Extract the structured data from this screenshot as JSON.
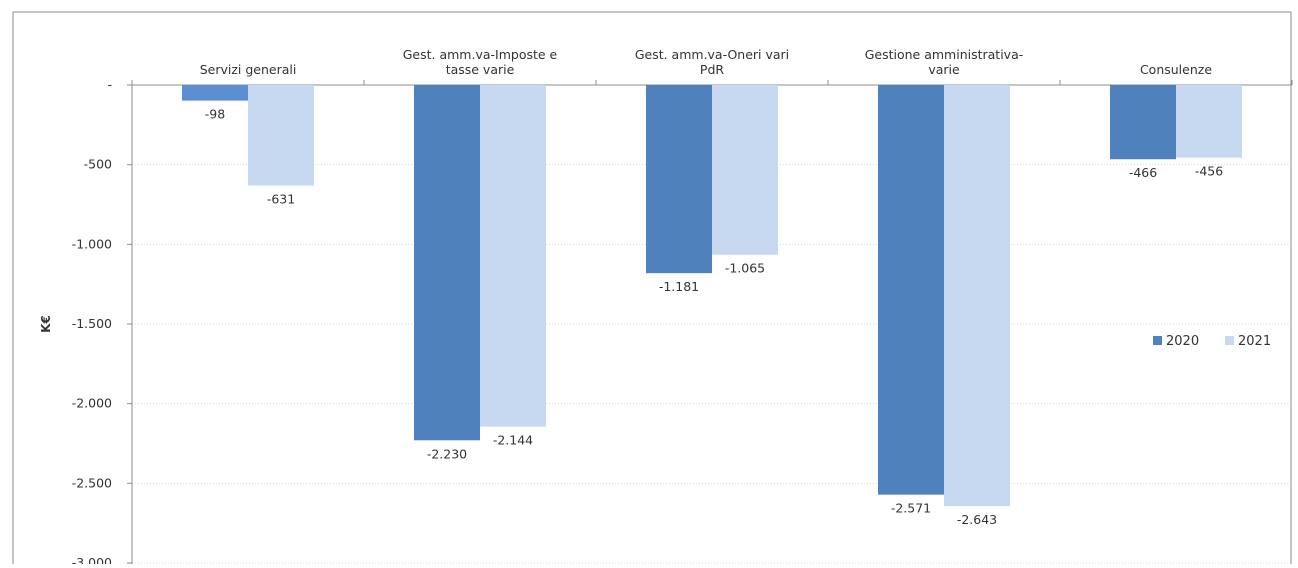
{
  "chart_data": {
    "type": "bar",
    "ylabel": "K€",
    "ylim": [
      -3000,
      0
    ],
    "yticks": [
      0,
      -500,
      -1000,
      -1500,
      -2000,
      -2500,
      -3000
    ],
    "ytick_labels": [
      "-",
      "-500",
      "-1.000",
      "-1.500",
      "-2.000",
      "-2.500",
      "-3.000"
    ],
    "grid": true,
    "legend_position": "right",
    "categories": [
      [
        "Servizi generali"
      ],
      [
        "Gest. amm.va-Imposte e",
        "tasse varie"
      ],
      [
        "Gest. amm.va-Oneri vari",
        "PdR"
      ],
      [
        "Gestione amministrativa-",
        "varie"
      ],
      [
        "Consulenze"
      ]
    ],
    "series": [
      {
        "name": "2020",
        "color": "#4F81BD",
        "values": [
          -98,
          -2230,
          -1181,
          -2571,
          -466
        ],
        "labels": [
          "-98",
          "-2.230",
          "-1.181",
          "-2.571",
          "-466"
        ]
      },
      {
        "name": "2021",
        "color": "#C6D9F1",
        "values": [
          -631,
          -2144,
          -1065,
          -2643,
          -456
        ],
        "labels": [
          "-631",
          "-2.144",
          "-1.065",
          "-2.643",
          "-456"
        ]
      }
    ]
  }
}
